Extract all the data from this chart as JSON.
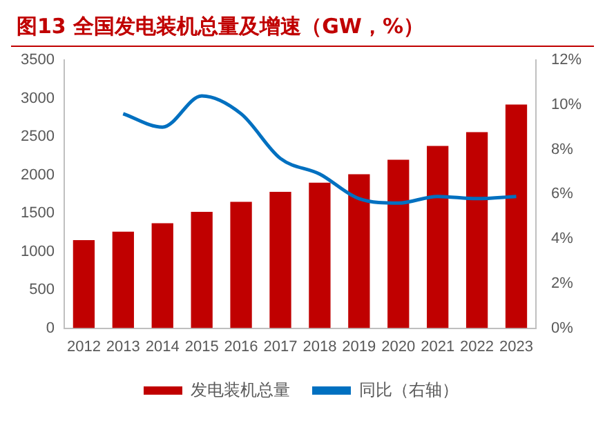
{
  "chart_data": {
    "type": "bar",
    "title": "图13  全国发电装机总量及增速（GW，%）",
    "categories": [
      "2012",
      "2013",
      "2014",
      "2015",
      "2016",
      "2017",
      "2018",
      "2019",
      "2020",
      "2021",
      "2022",
      "2023"
    ],
    "series": [
      {
        "name": "发电装机总量",
        "color": "#c00000",
        "values": [
          1150,
          1260,
          1370,
          1520,
          1650,
          1780,
          1900,
          2010,
          2200,
          2380,
          2560,
          2920
        ]
      },
      {
        "name": "同比（右轴）",
        "type": "line",
        "axis": "y2",
        "color": "#0070c0",
        "values": [
          null,
          9.6,
          9.0,
          10.4,
          9.6,
          7.6,
          6.9,
          5.8,
          5.6,
          5.9,
          5.8,
          5.9
        ]
      }
    ],
    "ylim": [
      0,
      3500
    ],
    "yticks": [
      0,
      500,
      1000,
      1500,
      2000,
      2500,
      3000,
      3500
    ],
    "y2lim": [
      0,
      12
    ],
    "y2ticks": [
      {
        "value": 0,
        "label": "0%"
      },
      {
        "value": 2,
        "label": "2%"
      },
      {
        "value": 4,
        "label": "4%"
      },
      {
        "value": 6,
        "label": "6%"
      },
      {
        "value": 8,
        "label": "8%"
      },
      {
        "value": 10,
        "label": "10%"
      },
      {
        "value": 12,
        "label": "12%"
      }
    ],
    "legend": "bottom",
    "marker": "none"
  }
}
